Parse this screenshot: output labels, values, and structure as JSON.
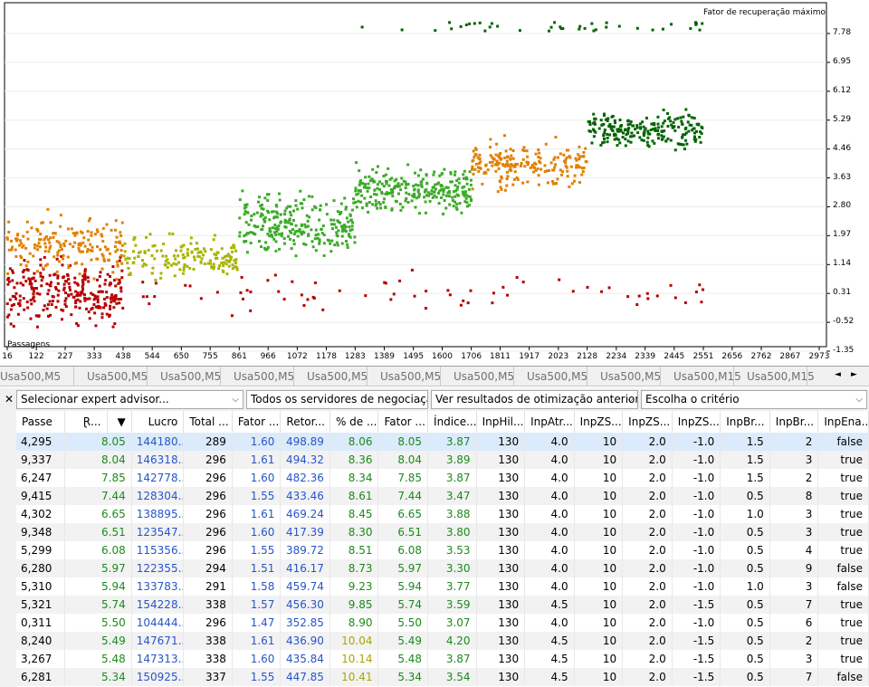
{
  "chart": {
    "title": "Fator de recuperação máximo",
    "x_axis_label": "Passagens",
    "y_ticks": [
      "7.78",
      "6.95",
      "6.12",
      "5.29",
      "4.46",
      "3.63",
      "2.80",
      "1.97",
      "1.14",
      "0.31",
      "-0.52",
      "-1.35"
    ],
    "x_ticks": [
      "16",
      "122",
      "227",
      "333",
      "438",
      "544",
      "650",
      "755",
      "861",
      "966",
      "1072",
      "1178",
      "1283",
      "1389",
      "1495",
      "1600",
      "1706",
      "1811",
      "1917",
      "2023",
      "2128",
      "2234",
      "2339",
      "2445",
      "2551",
      "2656",
      "2762",
      "2867",
      "2973"
    ],
    "colors": {
      "red": "#b40000",
      "orange": "#e08000",
      "yellowgreen": "#a8b400",
      "green": "#3caa28",
      "darkgreen": "#006400"
    }
  },
  "chart_data": {
    "type": "scatter",
    "title": "Fator de recuperação máximo",
    "xlabel": "Passagens",
    "ylabel": "",
    "xlim": [
      16,
      2973
    ],
    "ylim": [
      -1.35,
      8.2
    ],
    "clusters": [
      {
        "x_from": 16,
        "x_to": 438,
        "y_mean": 0.35,
        "y_spread": 0.9,
        "color": "red"
      },
      {
        "x_from": 16,
        "x_to": 438,
        "y_mean": 1.7,
        "y_spread": 0.8,
        "color": "orange"
      },
      {
        "x_from": 438,
        "x_to": 861,
        "y_mean": 1.3,
        "y_spread": 0.6,
        "color": "yellowgreen"
      },
      {
        "x_from": 861,
        "x_to": 1283,
        "y_mean": 2.3,
        "y_spread": 0.8,
        "color": "green"
      },
      {
        "x_from": 1283,
        "x_to": 1706,
        "y_mean": 3.3,
        "y_spread": 0.7,
        "color": "green"
      },
      {
        "x_from": 1706,
        "x_to": 2128,
        "y_mean": 4.0,
        "y_spread": 0.6,
        "color": "orange"
      },
      {
        "x_from": 2128,
        "x_to": 2551,
        "y_mean": 5.0,
        "y_spread": 0.5,
        "color": "darkgreen"
      },
      {
        "x_from": 438,
        "x_to": 2551,
        "y_mean": 0.3,
        "y_spread": 0.5,
        "color": "red"
      },
      {
        "x_from": 1283,
        "x_to": 2551,
        "y_mean": 8.1,
        "y_spread": 0.05,
        "color": "darkgreen"
      }
    ]
  },
  "tabs": [
    "Usa500,M5",
    "Usa500,M5",
    "Usa500,M5",
    "Usa500,M5",
    "Usa500,M5",
    "Usa500,M5",
    "Usa500,M5",
    "Usa500,M5",
    "Usa500,M5",
    "Usa500,M15",
    "Usa500,M15"
  ],
  "tab_nav": {
    "left": "◄",
    "right": "►"
  },
  "toolbar": {
    "close": "✕",
    "expert": "Selecionar expert advisor...",
    "servers": "Todos os servidores de negociação",
    "results": "Ver resultados de otimização anteriores",
    "criterion": "Escolha o critério",
    "dropdown_glyph": "⌵"
  },
  "table": {
    "headers": [
      "Passe",
      "Ɽ...",
      "▼",
      "Lucro",
      "Total ...",
      "Fator ...",
      "Retor...",
      "% de ...",
      "Fator ...",
      "Índice...",
      "InpHil...",
      "InpAtr...",
      "InpZS...",
      "InpZS...",
      "InpZS...",
      "InpBr...",
      "InpBr...",
      "InpEna..."
    ],
    "rows": [
      [
        "4,295",
        "8.05",
        "144180...",
        "289",
        "1.60",
        "498.89",
        "8.06",
        "8.05",
        "3.87",
        "130",
        "4.0",
        "10",
        "2.0",
        "-1.0",
        "1.5",
        "2",
        "false"
      ],
      [
        "9,337",
        "8.04",
        "146318...",
        "296",
        "1.61",
        "494.32",
        "8.36",
        "8.04",
        "3.89",
        "130",
        "4.0",
        "10",
        "2.0",
        "-1.0",
        "1.5",
        "3",
        "true"
      ],
      [
        "6,247",
        "7.85",
        "142778...",
        "296",
        "1.60",
        "482.36",
        "8.34",
        "7.85",
        "3.87",
        "130",
        "4.0",
        "10",
        "2.0",
        "-1.0",
        "1.5",
        "2",
        "true"
      ],
      [
        "9,415",
        "7.44",
        "128304...",
        "296",
        "1.55",
        "433.46",
        "8.61",
        "7.44",
        "3.47",
        "130",
        "4.0",
        "10",
        "2.0",
        "-1.0",
        "0.5",
        "8",
        "true"
      ],
      [
        "4,302",
        "6.65",
        "138895...",
        "296",
        "1.61",
        "469.24",
        "8.45",
        "6.65",
        "3.88",
        "130",
        "4.0",
        "10",
        "2.0",
        "-1.0",
        "1.0",
        "3",
        "true"
      ],
      [
        "9,348",
        "6.51",
        "123547...",
        "296",
        "1.60",
        "417.39",
        "8.30",
        "6.51",
        "3.80",
        "130",
        "4.0",
        "10",
        "2.0",
        "-1.0",
        "0.5",
        "3",
        "true"
      ],
      [
        "5,299",
        "6.08",
        "115356...",
        "296",
        "1.55",
        "389.72",
        "8.51",
        "6.08",
        "3.53",
        "130",
        "4.0",
        "10",
        "2.0",
        "-1.0",
        "0.5",
        "4",
        "true"
      ],
      [
        "6,280",
        "5.97",
        "122355...",
        "294",
        "1.51",
        "416.17",
        "8.73",
        "5.97",
        "3.30",
        "130",
        "4.0",
        "10",
        "2.0",
        "-1.0",
        "0.5",
        "9",
        "false"
      ],
      [
        "5,310",
        "5.94",
        "133783...",
        "291",
        "1.58",
        "459.74",
        "9.23",
        "5.94",
        "3.77",
        "130",
        "4.0",
        "10",
        "2.0",
        "-1.0",
        "1.0",
        "3",
        "false"
      ],
      [
        "5,321",
        "5.74",
        "154228...",
        "338",
        "1.57",
        "456.30",
        "9.85",
        "5.74",
        "3.59",
        "130",
        "4.5",
        "10",
        "2.0",
        "-1.5",
        "0.5",
        "7",
        "true"
      ],
      [
        "0,311",
        "5.50",
        "104444...",
        "296",
        "1.47",
        "352.85",
        "8.90",
        "5.50",
        "3.07",
        "130",
        "4.0",
        "10",
        "2.0",
        "-1.0",
        "0.5",
        "6",
        "true"
      ],
      [
        "8,240",
        "5.49",
        "147671...",
        "338",
        "1.61",
        "436.90",
        "10.04",
        "5.49",
        "4.20",
        "130",
        "4.5",
        "10",
        "2.0",
        "-1.5",
        "0.5",
        "2",
        "true"
      ],
      [
        "3,267",
        "5.48",
        "147313...",
        "338",
        "1.60",
        "435.84",
        "10.14",
        "5.48",
        "3.87",
        "130",
        "4.5",
        "10",
        "2.0",
        "-1.5",
        "0.5",
        "3",
        "true"
      ],
      [
        "6,281",
        "5.34",
        "150925...",
        "337",
        "1.55",
        "447.85",
        "10.41",
        "5.34",
        "3.54",
        "130",
        "4.5",
        "10",
        "2.0",
        "-1.5",
        "0.5",
        "7",
        "false"
      ]
    ]
  }
}
